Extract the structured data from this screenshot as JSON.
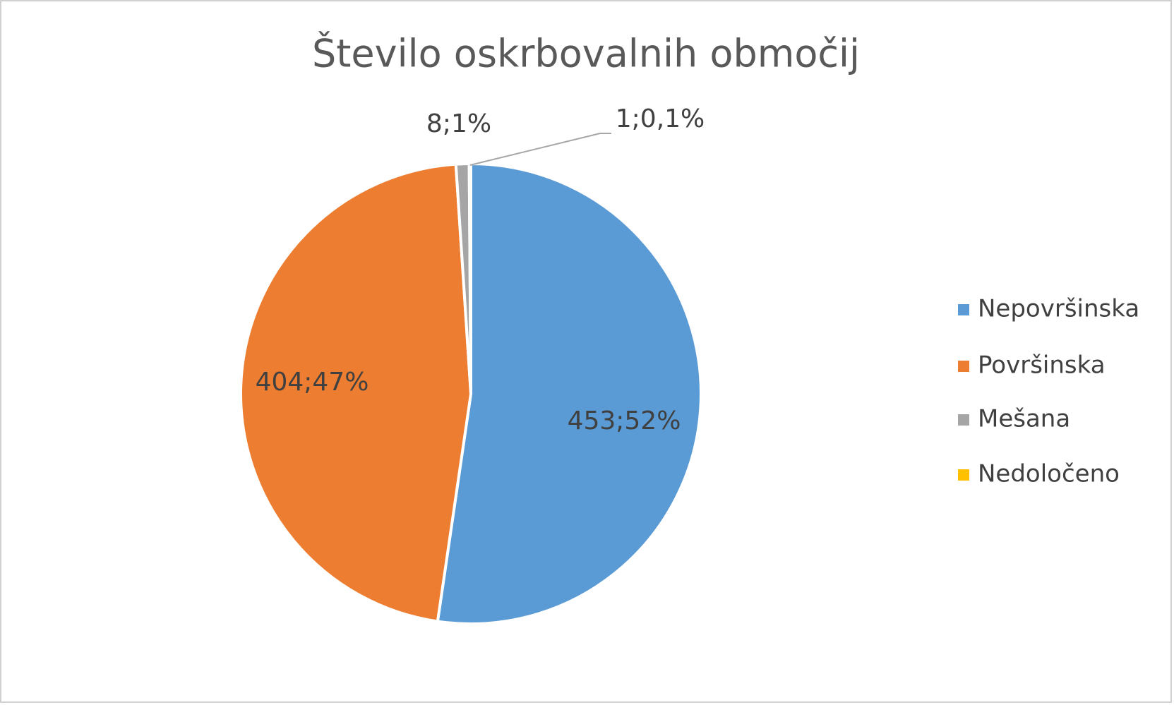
{
  "chart_data": {
    "type": "pie",
    "title": "Število oskrbovalnih območij",
    "categories": [
      "Nepovršinska",
      "Površinska",
      "Mešana",
      "Nedoločeno"
    ],
    "values": [
      453,
      404,
      8,
      1
    ],
    "value_labels": [
      "453;52%",
      "404;47%",
      "8;1%",
      "1;0,1%"
    ],
    "colors": [
      "#5b9bd5",
      "#ed7d31",
      "#a5a5a5",
      "#ffc000"
    ],
    "legend": "right"
  }
}
